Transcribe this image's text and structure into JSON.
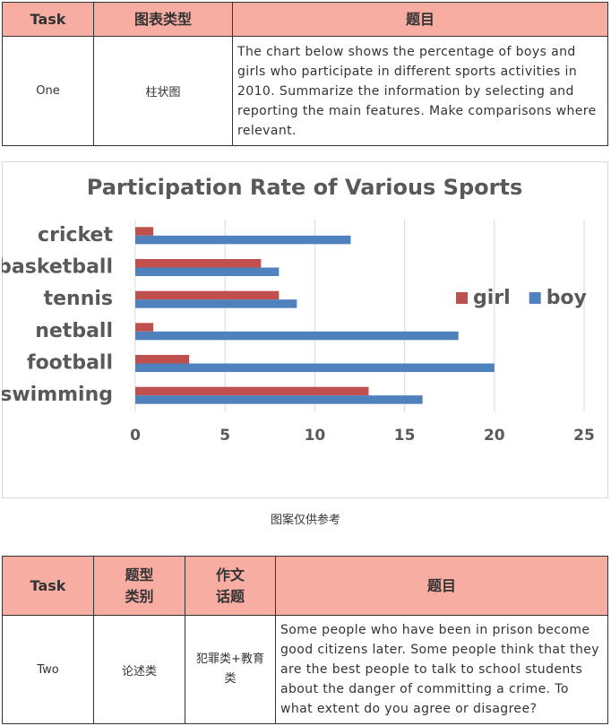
{
  "table1": {
    "headers": [
      "Task",
      "图表类型",
      "题目"
    ],
    "row": [
      "One",
      "柱状图",
      "The chart below shows the percentage of boys and girls who participate in different sports activities in 2010. Summarize the information by selecting and reporting the main features. Make comparisons where relevant."
    ]
  },
  "chart_data": {
    "type": "hbar",
    "title": "Participation Rate of Various Sports",
    "categories": [
      "cricket",
      "basketball",
      "tennis",
      "netball",
      "football",
      "swimming"
    ],
    "series": [
      {
        "name": "girl",
        "color": "#c0504d",
        "values": [
          1,
          7,
          8,
          1,
          3,
          13
        ]
      },
      {
        "name": "boy",
        "color": "#4f81bd",
        "values": [
          12,
          8,
          9,
          18,
          20,
          16
        ]
      }
    ],
    "xlim": [
      0,
      25
    ],
    "xticks": [
      0,
      5,
      10,
      15,
      20,
      25
    ],
    "grid": true,
    "legend": "right"
  },
  "caption": "图案仅供参考",
  "table2": {
    "headers": [
      [
        "Task"
      ],
      [
        "题型",
        "类别"
      ],
      [
        "作文",
        "话题"
      ],
      [
        "题目"
      ]
    ],
    "row": [
      "Two",
      "论述类",
      "犯罪类+教育类",
      "Some people who have been in prison become good citizens later. Some people think that they are the best people to talk to school students about the danger of committing a crime. To what extent do you agree or disagree?"
    ]
  }
}
